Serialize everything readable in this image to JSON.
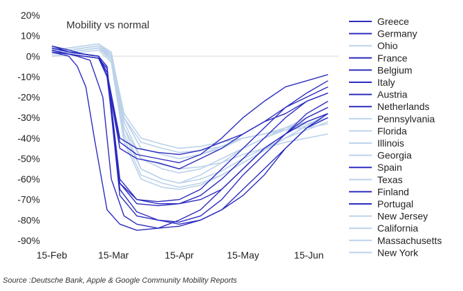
{
  "colors": {
    "dark": "#2b2bbf",
    "light": "#bcd2ea",
    "zero_line": "#d9d9d9"
  },
  "source": "Source :Deutsche Bank, Apple & Google Community Mobility Reports",
  "chart_data": {
    "type": "line",
    "title": "Mobility vs normal",
    "xlabel": "",
    "ylabel": "",
    "x_ticks": [
      "15-Feb",
      "15-Mar",
      "15-Apr",
      "15-May",
      "15-Jun"
    ],
    "x_tick_days": [
      0,
      29,
      60,
      90,
      121
    ],
    "y_ticks": [
      "20%",
      "10%",
      "0%",
      "-10%",
      "-20%",
      "-30%",
      "-40%",
      "-50%",
      "-60%",
      "-70%",
      "-80%",
      "-90%"
    ],
    "ylim": [
      -90,
      20
    ],
    "legend_position": "right",
    "grid": false,
    "x_unit": "days from 15-Feb",
    "y_unit": "percent vs normal",
    "series": [
      {
        "name": "Greece",
        "style": "dark",
        "x": [
          0,
          8,
          15,
          22,
          26,
          32,
          40,
          50,
          60,
          70,
          80,
          90,
          100,
          110,
          120,
          130
        ],
        "y": [
          5,
          2,
          1,
          0,
          -5,
          -65,
          -76,
          -80,
          -82,
          -80,
          -75,
          -65,
          -55,
          -45,
          -35,
          -30
        ]
      },
      {
        "name": "Germany",
        "style": "dark",
        "x": [
          0,
          8,
          15,
          22,
          26,
          32,
          40,
          50,
          60,
          70,
          80,
          90,
          100,
          110,
          120,
          130
        ],
        "y": [
          3,
          1,
          0,
          -1,
          -10,
          -45,
          -50,
          -52,
          -55,
          -50,
          -45,
          -38,
          -32,
          -25,
          -20,
          -15
        ]
      },
      {
        "name": "Ohio",
        "style": "light",
        "x": [
          0,
          8,
          15,
          22,
          28,
          34,
          42,
          52,
          60,
          70,
          80,
          90,
          100,
          110,
          120,
          130
        ],
        "y": [
          2,
          3,
          4,
          5,
          0,
          -30,
          -45,
          -48,
          -50,
          -48,
          -45,
          -40,
          -38,
          -35,
          -32,
          -28
        ]
      },
      {
        "name": "France",
        "style": "dark",
        "x": [
          0,
          8,
          15,
          22,
          26,
          32,
          40,
          50,
          60,
          70,
          80,
          90,
          100,
          110,
          120,
          130
        ],
        "y": [
          4,
          2,
          1,
          0,
          -8,
          -68,
          -78,
          -80,
          -81,
          -78,
          -70,
          -58,
          -48,
          -38,
          -28,
          -22
        ]
      },
      {
        "name": "Belgium",
        "style": "dark",
        "x": [
          0,
          8,
          15,
          22,
          26,
          32,
          40,
          50,
          60,
          70,
          80,
          90,
          100,
          110,
          120,
          130
        ],
        "y": [
          3,
          1,
          0,
          -1,
          -6,
          -60,
          -70,
          -72,
          -72,
          -68,
          -60,
          -50,
          -40,
          -30,
          -22,
          -18
        ]
      },
      {
        "name": "Italy",
        "style": "dark",
        "x": [
          0,
          8,
          12,
          16,
          20,
          26,
          32,
          40,
          50,
          60,
          70,
          80,
          90,
          100,
          110,
          120,
          130
        ],
        "y": [
          2,
          0,
          -5,
          -15,
          -40,
          -75,
          -82,
          -85,
          -84,
          -80,
          -75,
          -65,
          -55,
          -45,
          -38,
          -32,
          -28
        ]
      },
      {
        "name": "Austria",
        "style": "dark",
        "x": [
          0,
          8,
          15,
          22,
          26,
          32,
          40,
          50,
          60,
          70,
          80,
          90,
          100,
          110,
          120,
          130
        ],
        "y": [
          4,
          2,
          1,
          0,
          -8,
          -62,
          -70,
          -71,
          -70,
          -65,
          -55,
          -45,
          -35,
          -25,
          -18,
          -12
        ]
      },
      {
        "name": "Netherlands",
        "style": "dark",
        "x": [
          0,
          8,
          15,
          22,
          26,
          32,
          40,
          50,
          60,
          70,
          80,
          90,
          100,
          110,
          120,
          130
        ],
        "y": [
          5,
          3,
          1,
          0,
          -10,
          -42,
          -48,
          -50,
          -52,
          -48,
          -40,
          -30,
          -22,
          -15,
          -12,
          -9
        ]
      },
      {
        "name": "Pennsylvania",
        "style": "light",
        "x": [
          0,
          8,
          15,
          22,
          28,
          34,
          42,
          52,
          60,
          70,
          80,
          90,
          100,
          110,
          120,
          130
        ],
        "y": [
          2,
          3,
          4,
          5,
          0,
          -35,
          -55,
          -60,
          -62,
          -58,
          -52,
          -45,
          -40,
          -35,
          -30,
          -25
        ]
      },
      {
        "name": "Florida",
        "style": "light",
        "x": [
          0,
          8,
          15,
          22,
          28,
          34,
          42,
          52,
          60,
          70,
          80,
          90,
          100,
          110,
          120,
          130
        ],
        "y": [
          3,
          4,
          5,
          6,
          2,
          -30,
          -42,
          -45,
          -47,
          -46,
          -44,
          -40,
          -38,
          -36,
          -34,
          -30
        ]
      },
      {
        "name": "Illinois",
        "style": "light",
        "x": [
          0,
          8,
          15,
          22,
          28,
          34,
          42,
          52,
          60,
          70,
          80,
          90,
          100,
          110,
          120,
          130
        ],
        "y": [
          1,
          2,
          3,
          4,
          0,
          -32,
          -50,
          -55,
          -57,
          -55,
          -50,
          -45,
          -40,
          -36,
          -32,
          -28
        ]
      },
      {
        "name": "Georgia",
        "style": "light",
        "x": [
          0,
          8,
          15,
          22,
          28,
          34,
          42,
          52,
          60,
          70,
          80,
          90,
          100,
          110,
          120,
          130
        ],
        "y": [
          2,
          3,
          4,
          5,
          1,
          -28,
          -40,
          -43,
          -45,
          -44,
          -42,
          -40,
          -38,
          -36,
          -35,
          -33
        ]
      },
      {
        "name": "Spain",
        "style": "dark",
        "x": [
          0,
          8,
          12,
          18,
          24,
          28,
          34,
          40,
          50,
          60,
          70,
          80,
          90,
          100,
          110,
          120,
          130
        ],
        "y": [
          3,
          1,
          0,
          -2,
          -20,
          -60,
          -78,
          -82,
          -84,
          -83,
          -80,
          -75,
          -68,
          -58,
          -45,
          -35,
          -28
        ]
      },
      {
        "name": "Texas",
        "style": "light",
        "x": [
          0,
          8,
          15,
          22,
          28,
          34,
          42,
          52,
          60,
          70,
          80,
          90,
          100,
          110,
          120,
          130
        ],
        "y": [
          3,
          4,
          5,
          6,
          1,
          -30,
          -45,
          -48,
          -50,
          -48,
          -44,
          -40,
          -38,
          -35,
          -33,
          -30
        ]
      },
      {
        "name": "Finland",
        "style": "dark",
        "x": [
          0,
          8,
          15,
          22,
          26,
          32,
          40,
          50,
          60,
          70,
          80,
          90,
          100,
          110,
          120,
          130
        ],
        "y": [
          2,
          1,
          0,
          -1,
          -8,
          -40,
          -45,
          -47,
          -48,
          -46,
          -42,
          -38,
          -32,
          -28,
          -22,
          -18
        ]
      },
      {
        "name": "Portugal",
        "style": "dark",
        "x": [
          0,
          8,
          15,
          22,
          26,
          32,
          40,
          50,
          60,
          70,
          80,
          90,
          100,
          110,
          120,
          130
        ],
        "y": [
          4,
          2,
          1,
          0,
          -10,
          -62,
          -72,
          -73,
          -72,
          -70,
          -65,
          -55,
          -45,
          -38,
          -30,
          -25
        ]
      },
      {
        "name": "New Jersey",
        "style": "light",
        "x": [
          0,
          8,
          15,
          22,
          28,
          34,
          42,
          52,
          60,
          70,
          80,
          90,
          100,
          110,
          120,
          130
        ],
        "y": [
          1,
          2,
          3,
          4,
          -2,
          -40,
          -58,
          -62,
          -64,
          -62,
          -58,
          -52,
          -46,
          -40,
          -34,
          -28
        ]
      },
      {
        "name": "California",
        "style": "light",
        "x": [
          0,
          8,
          15,
          22,
          28,
          34,
          42,
          52,
          60,
          70,
          80,
          90,
          100,
          110,
          120,
          130
        ],
        "y": [
          2,
          3,
          4,
          5,
          0,
          -35,
          -50,
          -53,
          -55,
          -54,
          -52,
          -48,
          -45,
          -42,
          -40,
          -38
        ]
      },
      {
        "name": "Massachusetts",
        "style": "light",
        "x": [
          0,
          8,
          15,
          22,
          28,
          34,
          42,
          52,
          60,
          70,
          80,
          90,
          100,
          110,
          120,
          130
        ],
        "y": [
          1,
          2,
          3,
          4,
          -1,
          -38,
          -55,
          -60,
          -62,
          -60,
          -56,
          -50,
          -45,
          -40,
          -36,
          -32
        ]
      },
      {
        "name": "New York",
        "style": "light",
        "x": [
          0,
          8,
          15,
          22,
          28,
          34,
          42,
          52,
          60,
          70,
          80,
          90,
          100,
          110,
          120,
          130
        ],
        "y": [
          0,
          1,
          2,
          3,
          -3,
          -42,
          -60,
          -64,
          -65,
          -63,
          -58,
          -52,
          -46,
          -40,
          -34,
          -28
        ]
      }
    ]
  }
}
